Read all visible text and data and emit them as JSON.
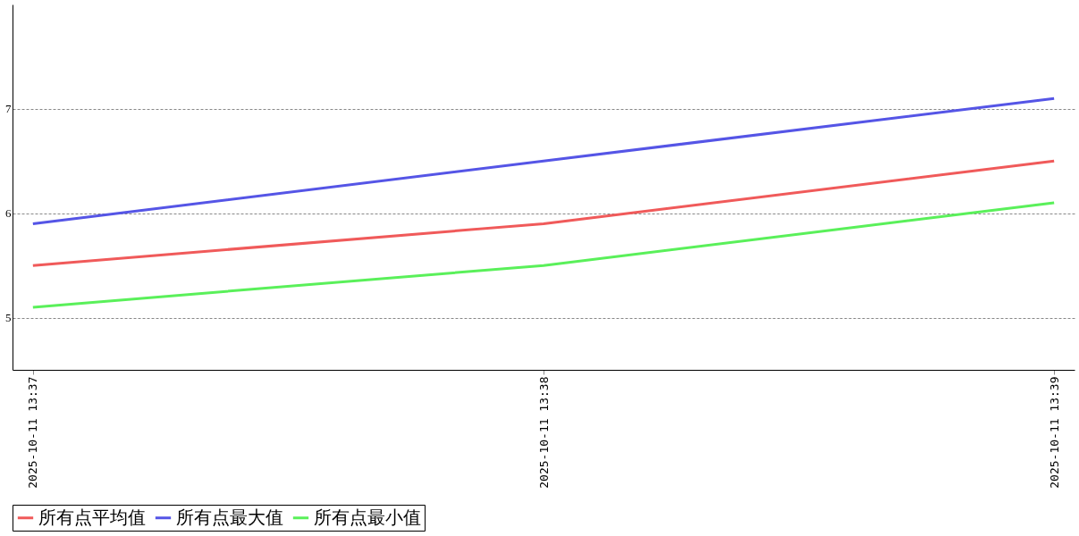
{
  "chart_data": {
    "type": "line",
    "categories": [
      "2025-10-11 13:37",
      "2025-10-11 13:38",
      "2025-10-11 13:39"
    ],
    "series": [
      {
        "name": "所有点平均值",
        "color": "#f05a5a",
        "values": [
          5.5,
          5.9,
          6.5
        ]
      },
      {
        "name": "所有点最大值",
        "color": "#5555e6",
        "values": [
          5.9,
          6.5,
          7.1
        ]
      },
      {
        "name": "所有点最小值",
        "color": "#5af05a",
        "values": [
          5.1,
          5.5,
          6.1
        ]
      }
    ],
    "ylim": [
      4.5,
      8
    ],
    "yticks": [
      5,
      6,
      7
    ],
    "grid": "y",
    "legend": "bottom",
    "line_style": "solid"
  }
}
